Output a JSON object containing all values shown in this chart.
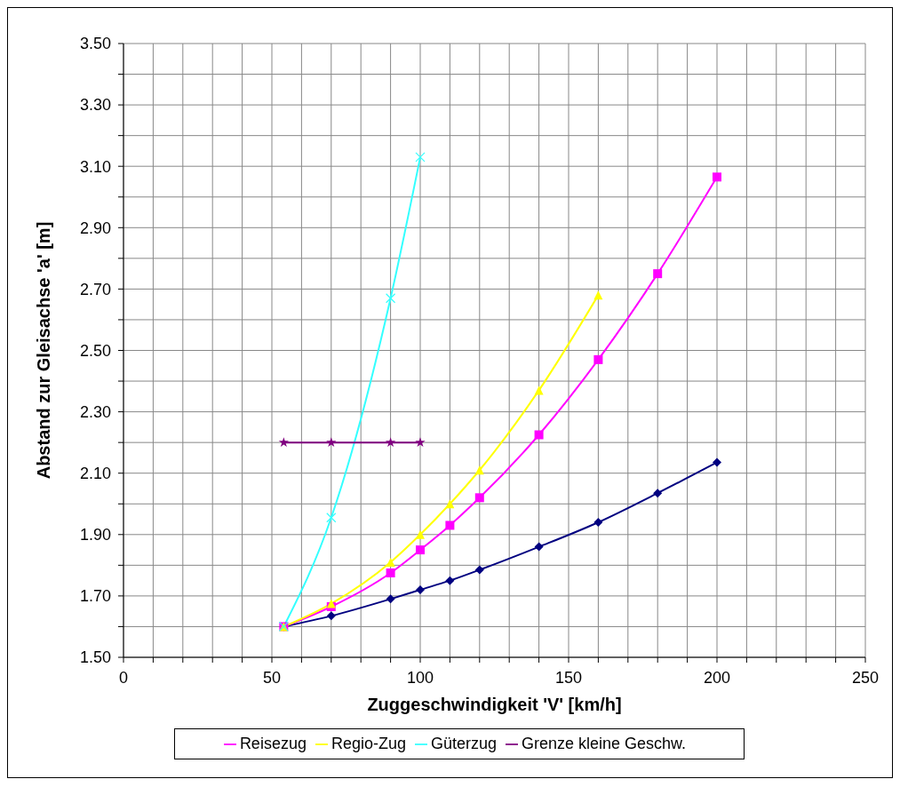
{
  "chart_data": {
    "type": "line",
    "xlabel": "Zuggeschwindigkeit 'V' [km/h]",
    "ylabel": "Abstand zur Gleisachse 'a' [m]",
    "xlim": [
      0,
      250
    ],
    "ylim": [
      1.5,
      3.5
    ],
    "xticks": [
      0,
      {
        "value": 10,
        "label": null
      },
      {
        "value": 20,
        "label": null
      },
      {
        "value": 30,
        "label": null
      },
      {
        "value": 40,
        "label": null
      },
      50,
      {
        "value": 60,
        "label": null
      },
      {
        "value": 70,
        "label": null
      },
      {
        "value": 80,
        "label": null
      },
      {
        "value": 90,
        "label": null
      },
      100,
      {
        "value": 110,
        "label": null
      },
      {
        "value": 120,
        "label": null
      },
      {
        "value": 130,
        "label": null
      },
      {
        "value": 140,
        "label": null
      },
      150,
      {
        "value": 160,
        "label": null
      },
      {
        "value": 170,
        "label": null
      },
      {
        "value": 180,
        "label": null
      },
      {
        "value": 190,
        "label": null
      },
      200,
      {
        "value": 210,
        "label": null
      },
      {
        "value": 220,
        "label": null
      },
      {
        "value": 230,
        "label": null
      },
      {
        "value": 240,
        "label": null
      },
      250
    ],
    "yticks": [
      {
        "value": 1.5,
        "label": "1.50"
      },
      {
        "value": 1.6,
        "label": null
      },
      {
        "value": 1.7,
        "label": "1.70"
      },
      {
        "value": 1.8,
        "label": null
      },
      {
        "value": 1.9,
        "label": "1.90"
      },
      {
        "value": 2.0,
        "label": null
      },
      {
        "value": 2.1,
        "label": "2.10"
      },
      {
        "value": 2.2,
        "label": null
      },
      {
        "value": 2.3,
        "label": "2.30"
      },
      {
        "value": 2.4,
        "label": null
      },
      {
        "value": 2.5,
        "label": "2.50"
      },
      {
        "value": 2.6,
        "label": null
      },
      {
        "value": 2.7,
        "label": "2.70"
      },
      {
        "value": 2.8,
        "label": null
      },
      {
        "value": 2.9,
        "label": "2.90"
      },
      {
        "value": 3.0,
        "label": null
      },
      {
        "value": 3.1,
        "label": "3.10"
      },
      {
        "value": 3.2,
        "label": null
      },
      {
        "value": 3.3,
        "label": "3.30"
      },
      {
        "value": 3.4,
        "label": null
      },
      {
        "value": 3.5,
        "label": "3.50"
      }
    ],
    "grid": true,
    "legend": "bottom",
    "line_style": "solid",
    "series": [
      {
        "color": "#000080",
        "marker": "diamond",
        "x": [
          54,
          70,
          90,
          100,
          110,
          120,
          140,
          160,
          180,
          200
        ],
        "values": [
          1.6,
          1.635,
          1.69,
          1.72,
          1.75,
          1.785,
          1.86,
          1.94,
          2.035,
          2.135
        ]
      },
      {
        "name": "Reisezug",
        "color": "#ff00ff",
        "marker": "square",
        "x": [
          54,
          70,
          90,
          100,
          110,
          120,
          140,
          160,
          180,
          200
        ],
        "values": [
          1.6,
          1.665,
          1.775,
          1.85,
          1.93,
          2.02,
          2.225,
          2.47,
          2.75,
          3.065
        ]
      },
      {
        "name": "Regio-Zug",
        "color": "#ffff00",
        "marker": "triangle",
        "x": [
          54,
          70,
          90,
          100,
          110,
          120,
          140,
          160
        ],
        "values": [
          1.6,
          1.675,
          1.81,
          1.9,
          2.0,
          2.11,
          2.37,
          2.68
        ]
      },
      {
        "name": "Güterzug",
        "color": "#33ffff",
        "marker": "cross",
        "x": [
          54,
          70,
          90,
          100
        ],
        "values": [
          1.6,
          1.955,
          2.67,
          3.13
        ]
      },
      {
        "name": "Grenze kleine Geschw.",
        "color": "#800080",
        "marker": "star",
        "x": [
          54,
          70,
          90,
          100
        ],
        "values": [
          2.2,
          2.2,
          2.2,
          2.2
        ]
      }
    ]
  }
}
